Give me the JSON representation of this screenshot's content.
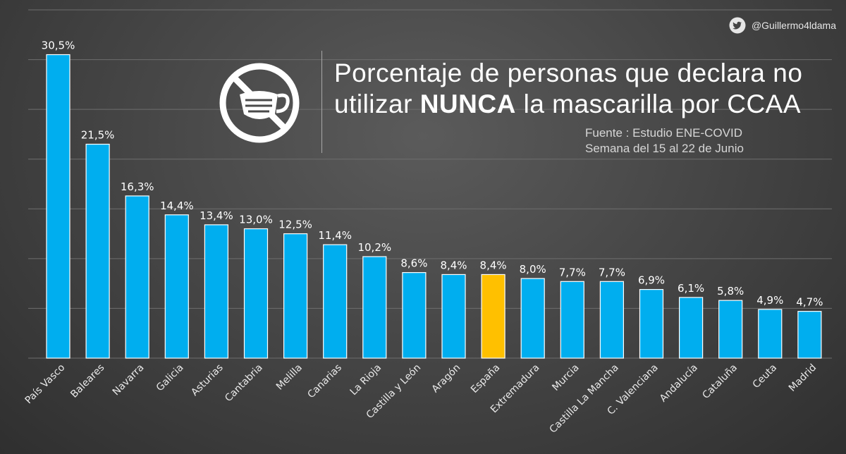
{
  "header": {
    "handle": "@Guillermo4ldama",
    "title_pre": "Porcentaje de personas que declara no utilizar ",
    "title_bold": "NUNCA",
    "title_post": " la mascarilla por CCAA",
    "source_line1": "Fuente : Estudio ENE-COVID",
    "source_line2": "Semana del 15 al 22 de Junio"
  },
  "icons": {
    "social": "twitter-bird-icon",
    "badge": "no-mask-icon"
  },
  "colors": {
    "bar": "#00aeef",
    "highlight": "#ffc000",
    "background": "#444444"
  },
  "chart_data": {
    "type": "bar",
    "title": "Porcentaje de personas que declara no utilizar NUNCA la mascarilla por CCAA",
    "xlabel": "",
    "ylabel": "",
    "ylim": [
      0,
      35
    ],
    "grid": true,
    "highlight": "España",
    "categories": [
      "País Vasco",
      "Baleares",
      "Navarra",
      "Galicia",
      "Asturias",
      "Cantabria",
      "Melilla",
      "Canarias",
      "La Rioja",
      "Castilla y León",
      "Aragón",
      "España",
      "Extremadura",
      "Murcia",
      "Castilla La Mancha",
      "C. Valenciana",
      "Andalucía",
      "Cataluña",
      "Ceuta",
      "Madrid"
    ],
    "values": [
      30.5,
      21.5,
      16.3,
      14.4,
      13.4,
      13.0,
      12.5,
      11.4,
      10.2,
      8.6,
      8.4,
      8.4,
      8.0,
      7.7,
      7.7,
      6.9,
      6.1,
      5.8,
      4.9,
      4.7
    ],
    "value_labels": [
      "30,5%",
      "21,5%",
      "16,3%",
      "14,4%",
      "13,4%",
      "13,0%",
      "12,5%",
      "11,4%",
      "10,2%",
      "8,6%",
      "8,4%",
      "8,4%",
      "8,0%",
      "7,7%",
      "7,7%",
      "6,9%",
      "6,1%",
      "5,8%",
      "4,9%",
      "4,7%"
    ]
  }
}
